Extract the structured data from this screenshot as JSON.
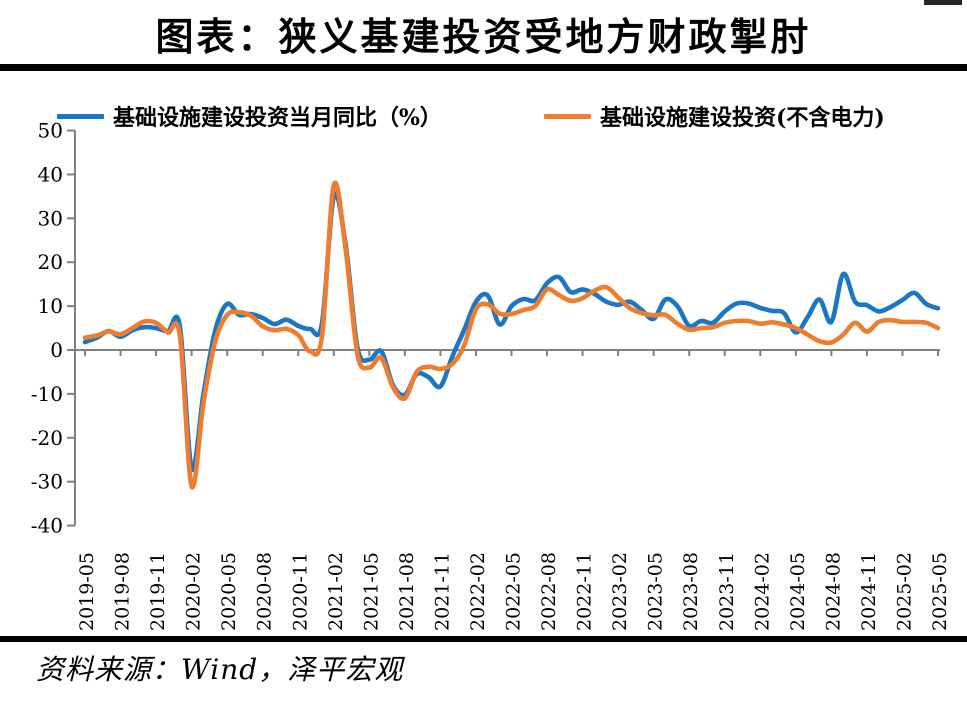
{
  "page": {
    "title": "图表：狭义基建投资受地方财政掣肘",
    "source_note": "资料来源：Wind，泽平宏观"
  },
  "legend": [
    {
      "label": "基础设施建设投资当月同比（%）",
      "color": "#1B77C6"
    },
    {
      "label": "基础设施建设投资(不含电力)",
      "color": "#EE7D2F"
    }
  ],
  "chart_data": {
    "type": "line",
    "title": "图表：狭义基建投资受地方财政掣肘",
    "x": [
      "2019-05",
      "2019-06",
      "2019-07",
      "2019-08",
      "2019-09",
      "2019-10",
      "2019-11",
      "2019-12",
      "2020-01",
      "2020-02",
      "2020-03",
      "2020-04",
      "2020-05",
      "2020-06",
      "2020-07",
      "2020-08",
      "2020-09",
      "2020-10",
      "2020-11",
      "2020-12",
      "2021-01",
      "2021-02",
      "2021-03",
      "2021-04",
      "2021-05",
      "2021-06",
      "2021-07",
      "2021-08",
      "2021-09",
      "2021-10",
      "2021-11",
      "2021-12",
      "2022-01",
      "2022-02",
      "2022-03",
      "2022-04",
      "2022-05",
      "2022-06",
      "2022-07",
      "2022-08",
      "2022-09",
      "2022-10",
      "2022-11",
      "2022-12",
      "2023-01",
      "2023-02",
      "2023-03",
      "2023-04",
      "2023-05",
      "2023-06",
      "2023-07",
      "2023-08",
      "2023-09",
      "2023-10",
      "2023-11",
      "2023-12",
      "2024-01",
      "2024-02",
      "2024-03",
      "2024-04",
      "2024-05",
      "2024-06",
      "2024-07",
      "2024-08",
      "2024-09",
      "2024-10",
      "2024-11",
      "2024-12",
      "2025-01",
      "2025-02",
      "2025-03",
      "2025-04",
      "2025-05"
    ],
    "x_tick_every": 3,
    "series": [
      {
        "name": "基础设施建设投资当月同比（%）",
        "color": "#1B77C6",
        "values": [
          1.8,
          2.8,
          4.3,
          3.0,
          4.5,
          5.2,
          5.0,
          4.3,
          5.5,
          -27.0,
          -10.0,
          4.5,
          10.5,
          8.0,
          8.2,
          7.3,
          5.9,
          6.9,
          5.5,
          4.8,
          6.0,
          35.0,
          24.0,
          0.5,
          -2.2,
          -0.3,
          -8.0,
          -10.2,
          -5.5,
          -6.2,
          -8.3,
          -1.5,
          4.5,
          11.0,
          12.4,
          5.8,
          10.0,
          11.6,
          11.3,
          15.2,
          16.6,
          13.2,
          13.8,
          12.8,
          11.0,
          10.3,
          11.0,
          9.1,
          7.1,
          11.5,
          10.0,
          5.5,
          6.6,
          6.2,
          8.8,
          10.6,
          10.6,
          9.6,
          8.9,
          8.4,
          4.0,
          7.5,
          11.5,
          6.4,
          17.3,
          11.0,
          10.2,
          8.8,
          9.8,
          11.4,
          13.0,
          10.5,
          9.5
        ]
      },
      {
        "name": "基础设施建设投资(不含电力)",
        "color": "#EE7D2F",
        "values": [
          2.8,
          3.3,
          4.2,
          3.6,
          5.0,
          6.5,
          6.2,
          4.0,
          3.4,
          -31.0,
          -12.0,
          2.0,
          8.0,
          8.6,
          7.8,
          5.4,
          4.5,
          4.8,
          3.4,
          -0.3,
          3.0,
          37.5,
          23.0,
          -1.0,
          -4.0,
          -1.8,
          -8.5,
          -11.0,
          -5.0,
          -3.8,
          -4.3,
          -3.2,
          1.0,
          9.3,
          10.4,
          8.3,
          8.2,
          9.1,
          10.0,
          13.8,
          12.5,
          11.2,
          11.8,
          13.5,
          14.3,
          12.0,
          9.5,
          8.4,
          7.9,
          8.0,
          6.0,
          4.6,
          5.0,
          5.2,
          6.2,
          6.6,
          6.6,
          6.0,
          6.3,
          5.8,
          5.0,
          3.5,
          2.0,
          1.7,
          3.5,
          6.2,
          4.2,
          6.4,
          6.8,
          6.4,
          6.4,
          6.2,
          5.0
        ]
      }
    ],
    "ylim": [
      -40,
      50
    ],
    "y_tick_step": 10,
    "grid": false,
    "legend_position": "top",
    "axis_color": "#808080"
  }
}
